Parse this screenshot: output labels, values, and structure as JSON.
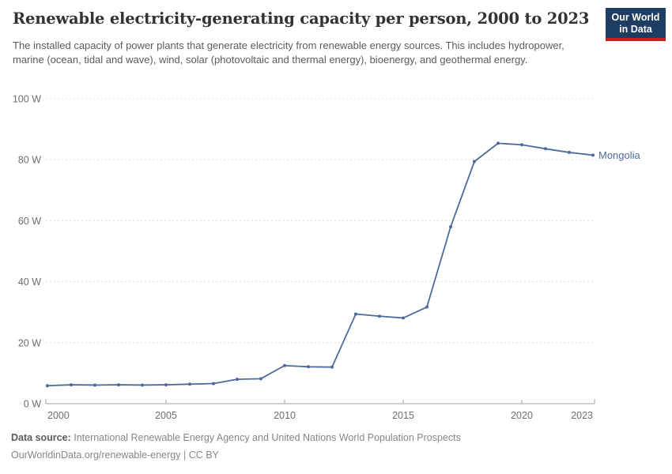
{
  "header": {
    "title": "Renewable electricity-generating capacity per person, 2000 to 2023",
    "subtitle": "The installed capacity of power plants that generate electricity from renewable energy sources. This includes hydropower, marine (ocean, tidal and wave), wind, solar (photovoltaic and thermal energy), bioenergy, and geothermal energy.",
    "logo": {
      "line1": "Our World",
      "line2": "in Data",
      "bg_color": "#1d3d63",
      "accent_color": "#C0201E"
    }
  },
  "chart_data": {
    "type": "line",
    "title": "Renewable electricity-generating capacity per person, 2000 to 2023",
    "unit": "W",
    "x": [
      2000,
      2001,
      2002,
      2003,
      2004,
      2005,
      2006,
      2007,
      2008,
      2009,
      2010,
      2011,
      2012,
      2013,
      2014,
      2015,
      2016,
      2017,
      2018,
      2019,
      2020,
      2021,
      2022,
      2023
    ],
    "series": [
      {
        "name": "Mongolia",
        "color": "#4C6A9C",
        "values": [
          5.9,
          6.2,
          6.1,
          6.2,
          6.1,
          6.2,
          6.4,
          6.6,
          8.0,
          8.2,
          12.5,
          12.1,
          12.0,
          29.4,
          28.7,
          28.1,
          31.7,
          58.0,
          79.4,
          85.4,
          84.9,
          83.6,
          82.4,
          81.5
        ]
      }
    ],
    "ylim": [
      0,
      100
    ],
    "yticks": [
      0,
      20,
      40,
      60,
      80,
      100
    ],
    "ytick_label_suffix": " W",
    "xticks": [
      2000,
      2005,
      2010,
      2015,
      2020,
      2023
    ],
    "xlabel": "",
    "ylabel": "",
    "grid": "horizontal-dashed",
    "legend_position": "end-of-line-label",
    "colors": {
      "grid": "#dcdcdc",
      "axis": "#a3a3a3",
      "tick_text": "#6e6e6e"
    }
  },
  "footer": {
    "source_label": "Data source:",
    "source_text": "International Renewable Energy Agency and United Nations World Population Prospects",
    "url": "OurWorldinData.org/renewable-energy",
    "separator": "|",
    "license": "CC BY"
  }
}
